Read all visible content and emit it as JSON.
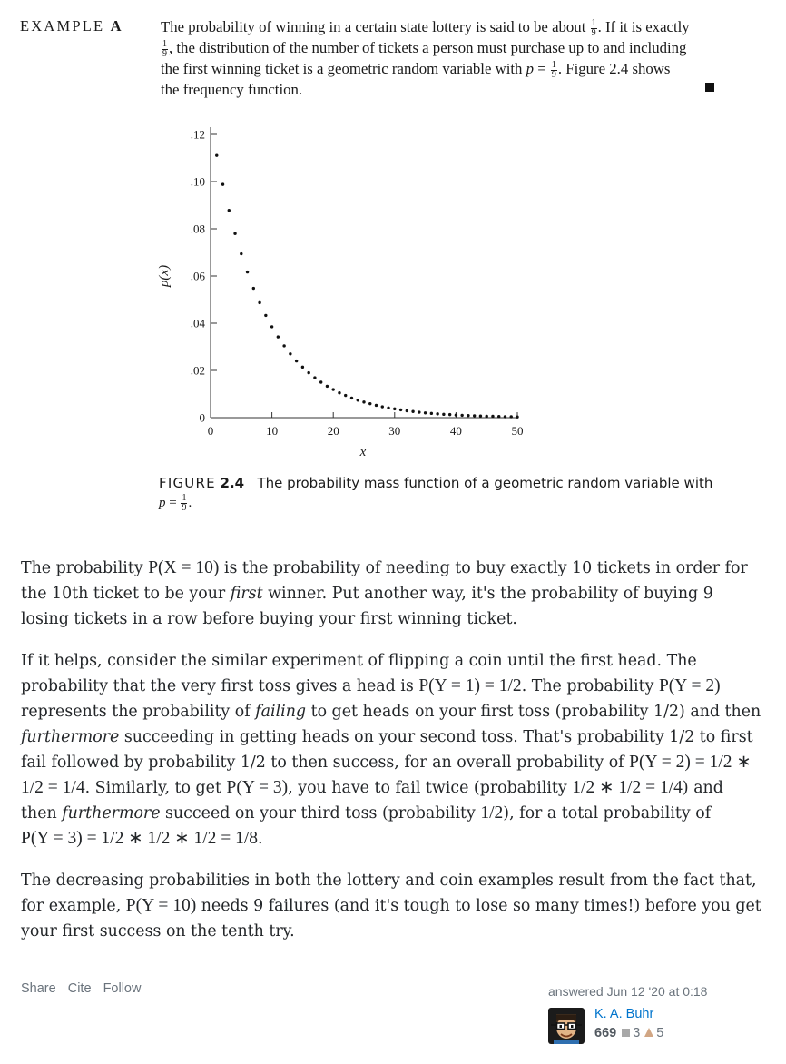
{
  "excerpt": {
    "label_prefix": "EXAMPLE",
    "label_letter": "A",
    "lines": [
      [
        "The probability of winning in a certain state lottery is said to be about ",
        "1",
        "9",
        ". If it is exactly"
      ],
      [
        "",
        "1",
        "9",
        ", the distribution of the number of tickets a person must purchase up to and including"
      ],
      [
        "the first winning ticket is a geometric random variable with ",
        "p",
        " = ",
        "1",
        "9",
        ". Figure 2.4 shows"
      ],
      [
        "the frequency function."
      ]
    ]
  },
  "chart_data": {
    "type": "scatter",
    "title": "",
    "xlabel": "x",
    "ylabel": "p(x)",
    "xlim": [
      0,
      50
    ],
    "ylim": [
      0,
      0.12
    ],
    "xticks": [
      "0",
      "10",
      "20",
      "30",
      "40",
      "50"
    ],
    "yticks": [
      "0",
      ".02",
      ".04",
      ".06",
      ".08",
      ".10",
      ".12"
    ],
    "x": [
      1,
      2,
      3,
      4,
      5,
      6,
      7,
      8,
      9,
      10,
      11,
      12,
      13,
      14,
      15,
      16,
      17,
      18,
      19,
      20,
      21,
      22,
      23,
      24,
      25,
      26,
      27,
      28,
      29,
      30,
      31,
      32,
      33,
      34,
      35,
      36,
      37,
      38,
      39,
      40,
      41,
      42,
      43,
      44,
      45,
      46,
      47,
      48,
      49,
      50
    ],
    "y": [
      0.1111,
      0.0988,
      0.0878,
      0.078,
      0.0694,
      0.0617,
      0.0548,
      0.0487,
      0.0433,
      0.0385,
      0.0342,
      0.0304,
      0.027,
      0.024,
      0.0214,
      0.019,
      0.0169,
      0.015,
      0.0133,
      0.0119,
      0.0105,
      0.0094,
      0.0083,
      0.0074,
      0.0066,
      0.0059,
      0.0052,
      0.0046,
      0.0041,
      0.0037,
      0.0033,
      0.0029,
      0.0026,
      0.0023,
      0.002,
      0.0018,
      0.0016,
      0.0014,
      0.0013,
      0.0011,
      0.001,
      0.0009,
      0.0008,
      0.0007,
      0.0006,
      0.0006,
      0.0005,
      0.0004,
      0.0004,
      0.0003
    ],
    "grid": false,
    "color": "#111111"
  },
  "figure_caption": {
    "label": "FIGURE",
    "number": "2.4",
    "text": "The probability mass function of a geometric random variable with",
    "eq_var": "p",
    "eq_sign": " = ",
    "eq_num": "1",
    "eq_den": "9",
    "eq_end": "."
  },
  "answer": {
    "p1": [
      {
        "t": "The probability "
      },
      {
        "m": "P(X = 10)"
      },
      {
        "t": " is the probability of needing to buy exactly 10 tickets in order for the 10th ticket to be your "
      },
      {
        "em": "first"
      },
      {
        "t": " winner. Put another way, it's the probability of buying 9 losing tickets in a row before buying your first winning ticket."
      }
    ],
    "p2": [
      {
        "t": "If it helps, consider the similar experiment of flipping a coin until the first head. The probability that the very first toss gives a head is "
      },
      {
        "m": "P(Y = 1) = 1/2"
      },
      {
        "t": ". The probability "
      },
      {
        "m": "P(Y = 2)"
      },
      {
        "t": " represents the probability of "
      },
      {
        "em": "failing"
      },
      {
        "t": " to get heads on your first toss (probability 1/2) and then "
      },
      {
        "em": "furthermore"
      },
      {
        "t": " succeeding in getting heads on your second toss. That's probability 1/2 to first fail followed by probability 1/2 to then success, for an overall probability of "
      },
      {
        "m": "P(Y = 2) = 1/2 ∗ 1/2 = 1/4"
      },
      {
        "t": ". Similarly, to get "
      },
      {
        "m": "P(Y = 3)"
      },
      {
        "t": ", you have to fail twice (probability "
      },
      {
        "m": "1/2 ∗ 1/2 = 1/4"
      },
      {
        "t": ") and then "
      },
      {
        "em": "furthermore"
      },
      {
        "t": " succeed on your third toss (probability "
      },
      {
        "m": "1/2"
      },
      {
        "t": "), for a total probability of "
      },
      {
        "br": true
      },
      {
        "m": "P(Y = 3) = 1/2 ∗ 1/2 ∗ 1/2 = 1/8"
      },
      {
        "t": "."
      }
    ],
    "p3": [
      {
        "t": "The decreasing probabilities in both the lottery and coin examples result from the fact that, for example, "
      },
      {
        "m": "P(Y = 10)"
      },
      {
        "t": " needs 9 failures (and it's tough to lose so many times!) before you get your first success on the tenth try."
      }
    ]
  },
  "post_menu": {
    "share": "Share",
    "cite": "Cite",
    "follow": "Follow"
  },
  "user_card": {
    "action_time": "answered Jun 12 '20 at 0:18",
    "name": "K. A. Buhr",
    "reputation": "669",
    "silver_badges": "3",
    "bronze_badges": "5",
    "avatar_icon": "glasses-face-avatar"
  }
}
